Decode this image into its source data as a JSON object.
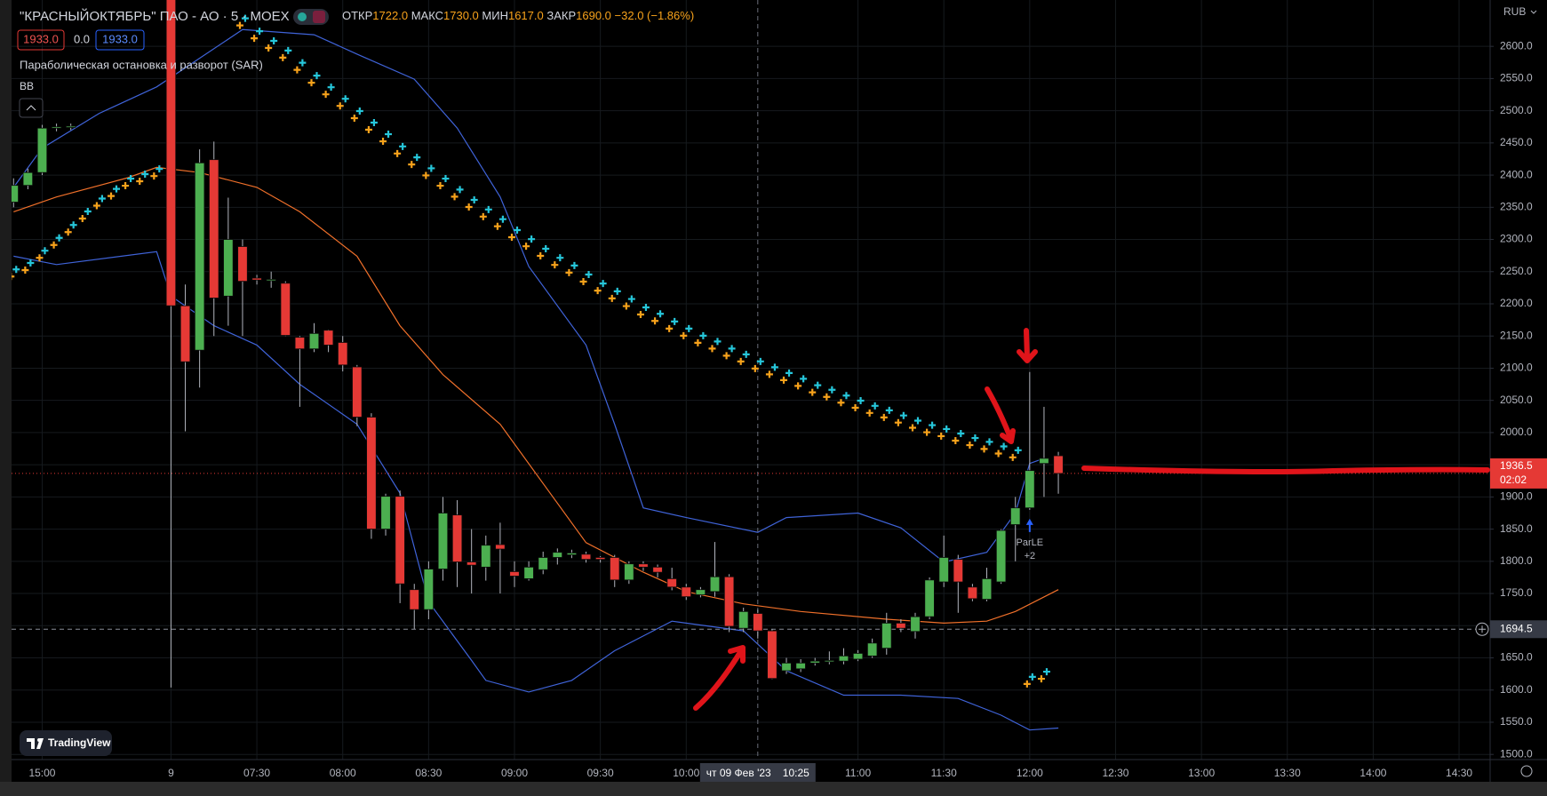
{
  "header": {
    "title": "\"КРАСНЫЙОКТЯБРЬ\" ПАО - АО · 5 · MOEX",
    "ohlc": [
      {
        "label": "ОТКР",
        "value": "1722.0"
      },
      {
        "label": "МАКС",
        "value": "1730.0"
      },
      {
        "label": "МИН",
        "value": "1617.0"
      },
      {
        "label": "ЗАКР",
        "value": "1690.0"
      }
    ],
    "change": "−32.0 (−1.86%)",
    "sell": "1933.0",
    "spread": "0.0",
    "buy": "1933.0",
    "indicators": [
      "Параболическая остановка и разворот (SAR)",
      "BB"
    ]
  },
  "currency": "RUB",
  "watermark": "TradingView",
  "chart_data": {
    "type": "candlestick",
    "colors": {
      "up": "#4caf50",
      "down": "#e53935",
      "sar": [
        "#f7a21b",
        "#26c6da"
      ]
    },
    "xlim": [
      -0.14,
      103.17
    ],
    "ylim": [
      1492,
      2672
    ],
    "grid": true,
    "xticks": [
      {
        "value": 2,
        "label": "15:00"
      },
      {
        "value": 11,
        "label": "9"
      },
      {
        "value": 17,
        "label": "07:30"
      },
      {
        "value": 23,
        "label": "08:00"
      },
      {
        "value": 29,
        "label": "08:30"
      },
      {
        "value": 35,
        "label": "09:00"
      },
      {
        "value": 41,
        "label": "09:30"
      },
      {
        "value": 47,
        "label": "10:00"
      },
      {
        "value": 59,
        "label": "11:00"
      },
      {
        "value": 65,
        "label": "11:30"
      },
      {
        "value": 71,
        "label": "12:00"
      },
      {
        "value": 77,
        "label": "12:30"
      },
      {
        "value": 83,
        "label": "13:00"
      },
      {
        "value": 89,
        "label": "13:30"
      },
      {
        "value": 95,
        "label": "14:00"
      },
      {
        "value": 101,
        "label": "14:30"
      }
    ],
    "yticks": [
      {
        "value": 1500,
        "label": "1500.0"
      },
      {
        "value": 1550,
        "label": "1550.0"
      },
      {
        "value": 1600,
        "label": "1600.0"
      },
      {
        "value": 1650,
        "label": "1650.0"
      },
      {
        "value": 1700,
        "label": "1700.0"
      },
      {
        "value": 1750,
        "label": "1750.0"
      },
      {
        "value": 1800,
        "label": "1800.0"
      },
      {
        "value": 1850,
        "label": "1850.0"
      },
      {
        "value": 1900,
        "label": "1900.0"
      },
      {
        "value": 1950,
        "label": "1950.0"
      },
      {
        "value": 2000,
        "label": "2000.0"
      },
      {
        "value": 2050,
        "label": "2050.0"
      },
      {
        "value": 2100,
        "label": "2100.0"
      },
      {
        "value": 2150,
        "label": "2150.0"
      },
      {
        "value": 2200,
        "label": "2200.0"
      },
      {
        "value": 2250,
        "label": "2250.0"
      },
      {
        "value": 2300,
        "label": "2300.0"
      },
      {
        "value": 2350,
        "label": "2350.0"
      },
      {
        "value": 2400,
        "label": "2400.0"
      },
      {
        "value": 2450,
        "label": "2450.0"
      },
      {
        "value": 2500,
        "label": "2500.0"
      },
      {
        "value": 2550,
        "label": "2550.0"
      },
      {
        "value": 2600,
        "label": "2600.0"
      }
    ],
    "open": [
      2358,
      2384,
      2404,
      2473,
      2475,
      null,
      null,
      null,
      null,
      null,
      null,
      2680,
      2197,
      2128,
      2424,
      2212,
      2289,
      2240,
      2237,
      2232,
      2148,
      2130,
      2159,
      2140,
      2102,
      2024,
      1850,
      1901,
      1756,
      1725,
      1788,
      1872,
      1799,
      1791,
      1826,
      1784,
      1773,
      1787,
      1806,
      1810,
      1811,
      1806,
      1806,
      1771,
      1796,
      1791,
      1773,
      1760,
      1748,
      1753,
      1776,
      1696,
      1719,
      1692,
      1630,
      1633,
      1642,
      1645,
      1645,
      1648,
      1653,
      1665,
      1704,
      1691,
      1714,
      1768,
      1803,
      1760,
      1741,
      1768,
      1857,
      1883,
      1952,
      1964
    ],
    "high": [
      2395,
      2410,
      2478,
      2480,
      2480,
      null,
      null,
      null,
      null,
      null,
      null,
      2700,
      2230,
      2440,
      2452,
      2365,
      2300,
      2245,
      2250,
      2235,
      2150,
      2170,
      2160,
      2150,
      2105,
      2030,
      1905,
      1910,
      1765,
      1800,
      1900,
      1895,
      1850,
      1840,
      1860,
      1800,
      1800,
      1815,
      1820,
      1818,
      1815,
      1808,
      1810,
      1800,
      1800,
      1795,
      1790,
      1765,
      1760,
      1830,
      1780,
      1728,
      1725,
      1695,
      1650,
      1648,
      1650,
      1660,
      1665,
      1662,
      1680,
      1720,
      1710,
      1720,
      1775,
      1840,
      1810,
      1765,
      1790,
      1850,
      1900,
      2094,
      2040,
      1970
    ],
    "low": [
      2350,
      2378,
      2400,
      2468,
      2470,
      null,
      null,
      null,
      null,
      null,
      null,
      1604,
      2002,
      2070,
      2150,
      2166,
      2150,
      2230,
      2225,
      2150,
      2040,
      2125,
      2125,
      2095,
      2010,
      1835,
      1840,
      1735,
      1695,
      1710,
      1770,
      1760,
      1750,
      1770,
      1750,
      1760,
      1770,
      1780,
      1795,
      1805,
      1798,
      1798,
      1760,
      1765,
      1785,
      1775,
      1755,
      1740,
      1744,
      1745,
      1690,
      1690,
      1680,
      1617,
      1625,
      1628,
      1638,
      1640,
      1640,
      1645,
      1650,
      1655,
      1690,
      1680,
      1710,
      1760,
      1720,
      1738,
      1738,
      1765,
      1800,
      1880,
      1900,
      1905
    ],
    "close": [
      2384,
      2404,
      2473,
      2475,
      2476,
      null,
      null,
      null,
      null,
      null,
      null,
      2197,
      2110,
      2419,
      2209,
      2300,
      2235,
      2237,
      2238,
      2151,
      2130,
      2154,
      2136,
      2105,
      2024,
      1850,
      1901,
      1765,
      1725,
      1788,
      1875,
      1799,
      1794,
      1825,
      1819,
      1777,
      1791,
      1806,
      1814,
      1813,
      1803,
      1803,
      1771,
      1796,
      1791,
      1783,
      1760,
      1745,
      1756,
      1776,
      1699,
      1722,
      1692,
      1618,
      1642,
      1642,
      1645,
      1646,
      1653,
      1657,
      1673,
      1704,
      1696,
      1714,
      1771,
      1806,
      1768,
      1742,
      1773,
      1848,
      1883,
      1941,
      1960,
      1936.5
    ],
    "sar": [
      2248,
      2258,
      2277,
      2297,
      2317,
      2338,
      2358,
      2373,
      2389,
      2396,
      2404,
      null,
      null,
      null,
      null,
      null,
      2638,
      2618,
      2603,
      2588,
      2569,
      2549,
      2531,
      2513,
      2494,
      2476,
      2458,
      2439,
      2422,
      2405,
      2389,
      2372,
      2356,
      2341,
      2326,
      2309,
      2295,
      2280,
      2266,
      2254,
      2240,
      2226,
      2214,
      2202,
      2189,
      2179,
      2167,
      2156,
      2145,
      2136,
      2125,
      2116,
      2105,
      2096,
      2087,
      2078,
      2068,
      2061,
      2052,
      2044,
      2036,
      2029,
      2021,
      2013,
      2006,
      2000,
      1993,
      1986,
      1980,
      1973,
      1967,
      1615,
      1623,
      null
    ],
    "bb_upper": {
      "color": "#3f63d8",
      "x": [
        0,
        2,
        6,
        10,
        16,
        21,
        24,
        28,
        31,
        34,
        36,
        40,
        42,
        44,
        47,
        52,
        54,
        59,
        62,
        65,
        68,
        70,
        71,
        72
      ],
      "values": [
        2381,
        2442,
        2496,
        2537,
        2626,
        2618,
        2588,
        2549,
        2473,
        2366,
        2258,
        2136,
        2013,
        1883,
        1868,
        1845,
        1868,
        1875,
        1852,
        1799,
        1814,
        1875,
        1952,
        1960
      ]
    },
    "bb_lower": {
      "color": "#3f63d8",
      "x": [
        0,
        3,
        10,
        11,
        14,
        17,
        20,
        24,
        27,
        29,
        32,
        33,
        36,
        39,
        42,
        46,
        51,
        54,
        58,
        62,
        66,
        69,
        71,
        73
      ],
      "values": [
        2274,
        2261,
        2281,
        2212,
        2166,
        2136,
        2075,
        2013,
        1906,
        1737,
        1646,
        1615,
        1597,
        1615,
        1661,
        1707,
        1692,
        1630,
        1592,
        1592,
        1587,
        1561,
        1538,
        1541
      ]
    },
    "bb_basis": {
      "color": "#f0702a",
      "x": [
        0,
        3,
        8,
        10,
        13,
        17,
        20,
        24,
        27,
        30,
        34,
        37,
        40,
        44,
        47,
        51,
        55,
        61,
        65,
        68,
        70,
        73
      ],
      "values": [
        2343,
        2366,
        2396,
        2412,
        2404,
        2381,
        2343,
        2274,
        2166,
        2090,
        2013,
        1921,
        1829,
        1783,
        1753,
        1734,
        1722,
        1710,
        1704,
        1707,
        1722,
        1756
      ]
    },
    "last_price": 1936.5,
    "countdown": "02:02",
    "crosshair": {
      "x": 52,
      "y": 1694.5,
      "date_label": "чт 09 Фев '23",
      "time_label": "10:25"
    },
    "signal": {
      "x": 71,
      "text": "ParLE",
      "qty": "+2",
      "color": "#2962ff"
    }
  }
}
